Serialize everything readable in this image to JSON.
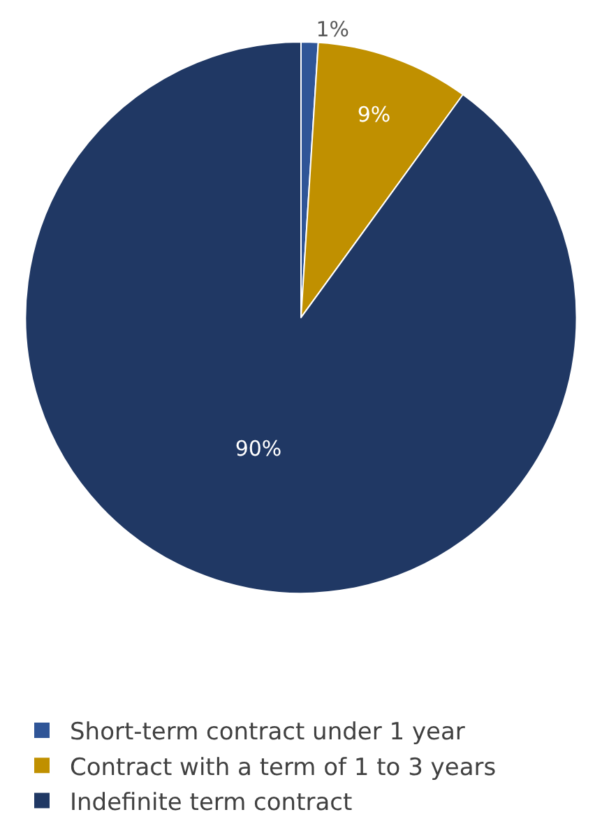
{
  "chart_data": {
    "type": "pie",
    "categories": [
      "Short-term contract under 1 year",
      "Contract with a term of 1 to 3 years",
      "Indefinite term contract"
    ],
    "values": [
      1,
      9,
      90
    ],
    "colors": [
      "#2f5597",
      "#c09000",
      "#203864"
    ],
    "value_labels": [
      "1%",
      "9%",
      "90%"
    ],
    "legend": "bottom"
  }
}
